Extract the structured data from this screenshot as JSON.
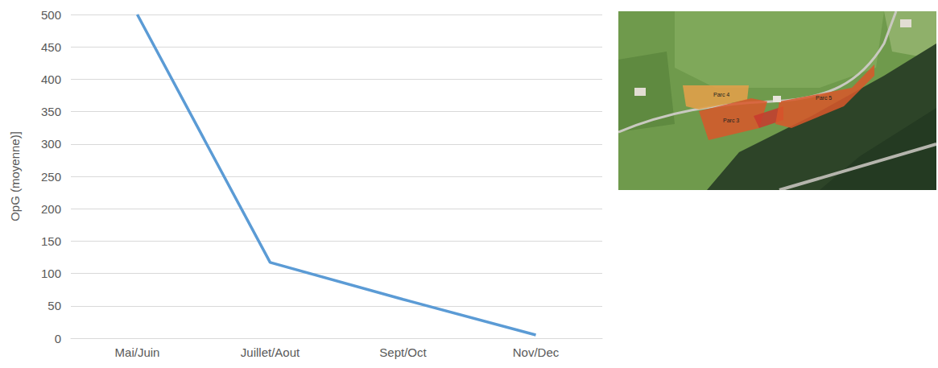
{
  "chart_data": {
    "type": "line",
    "y_label": "OpG (moyenne)]",
    "categories": [
      "Mai/Juin",
      "Juillet/Aout",
      "Sept/Oct",
      "Nov/Dec"
    ],
    "values": [
      500,
      117,
      60,
      5
    ],
    "color": "#5b9bd5",
    "ylim": [
      0,
      500
    ],
    "yticks": [
      0,
      50,
      100,
      150,
      200,
      250,
      300,
      350,
      400,
      450,
      500
    ],
    "grid": true
  },
  "map": {
    "labels": [
      "Parc 4",
      "Parc 3",
      "Parc 5"
    ]
  }
}
